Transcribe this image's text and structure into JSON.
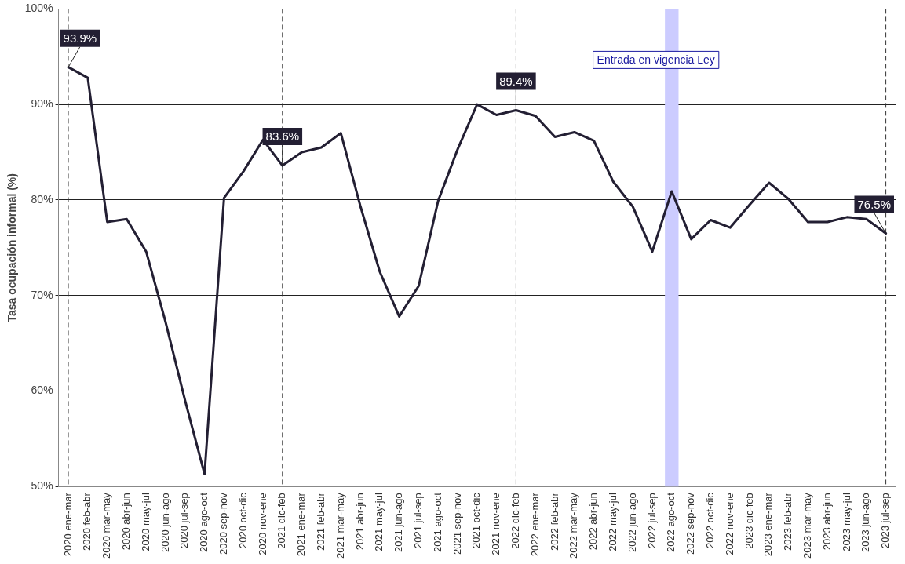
{
  "chart_data": {
    "type": "line",
    "ylabel": "Tasa ocupación informal (%)",
    "categories": [
      "2020 ene-mar",
      "2020 feb-abr",
      "2020 mar-may",
      "2020 abr-jun",
      "2020 may-jul",
      "2020 jun-ago",
      "2020 jul-sep",
      "2020 ago-oct",
      "2020 sep-nov",
      "2020 oct-dic",
      "2020 nov-ene",
      "2021 dic-feb",
      "2021 ene-mar",
      "2021 feb-abr",
      "2021 mar-may",
      "2021 abr-jun",
      "2021 may-jul",
      "2021 jun-ago",
      "2021 jul-sep",
      "2021 ago-oct",
      "2021 sep-nov",
      "2021 oct-dic",
      "2021 nov-ene",
      "2022 dic-feb",
      "2022 ene-mar",
      "2022 feb-abr",
      "2022 mar-may",
      "2022 abr-jun",
      "2022 may-jul",
      "2022 jun-ago",
      "2022 jul-sep",
      "2022 ago-oct",
      "2022 sep-nov",
      "2022 oct-dic",
      "2022 nov-ene",
      "2023 dic-feb",
      "2023 ene-mar",
      "2023 feb-abr",
      "2023 mar-may",
      "2023 abr-jun",
      "2023 may-jul",
      "2023 jun-ago",
      "2023 jul-sep"
    ],
    "series": [
      {
        "color": "#231f33",
        "values": [
          93.9,
          92.8,
          77.7,
          78.0,
          74.6,
          67.2,
          59.0,
          51.3,
          80.2,
          83.0,
          86.3,
          83.6,
          85.0,
          85.5,
          87.0,
          79.4,
          72.5,
          67.8,
          71.0,
          79.9,
          85.3,
          90.0,
          88.9,
          89.4,
          88.8,
          86.6,
          87.1,
          86.2,
          81.9,
          79.3,
          74.6,
          80.9,
          75.9,
          77.9,
          77.1,
          79.5,
          81.8,
          80.1,
          77.7,
          77.7,
          78.2,
          78.0,
          76.5
        ],
        "value_labels": [
          "93.9%",
          null,
          null,
          null,
          null,
          null,
          null,
          null,
          null,
          null,
          null,
          "83.6%",
          null,
          null,
          null,
          null,
          null,
          null,
          null,
          null,
          null,
          null,
          null,
          "89.4%",
          null,
          null,
          null,
          null,
          null,
          null,
          null,
          null,
          null,
          null,
          null,
          null,
          null,
          null,
          null,
          null,
          null,
          null,
          "76.5%"
        ]
      }
    ],
    "ylim": [
      50,
      100
    ],
    "yticks": [
      {
        "value": 50,
        "label": "50%"
      },
      {
        "value": 60,
        "label": "60%"
      },
      {
        "value": 70,
        "label": "70%"
      },
      {
        "value": 80,
        "label": "80%"
      },
      {
        "value": 90,
        "label": "90%"
      },
      {
        "value": 100,
        "label": "100%"
      }
    ],
    "grid": "y",
    "legend": false,
    "marker": "none",
    "line_style": "solid",
    "ref_lines": [
      {
        "axis": "x",
        "value": "2020 ene-mar",
        "color": "#333333",
        "line_style": "dashed"
      },
      {
        "axis": "x",
        "value": "2021 dic-feb",
        "color": "#333333",
        "line_style": "dashed"
      },
      {
        "axis": "x",
        "value": "2022 dic-feb",
        "color": "#333333",
        "line_style": "dashed"
      },
      {
        "axis": "x",
        "value": "2023 jul-sep",
        "color": "#333333",
        "line_style": "dashed"
      }
    ],
    "bands": [
      {
        "axis": "x",
        "from": "2022 ago-oct",
        "to": "2022 ago-oct",
        "label": "Entrada en vigencia Ley",
        "color": "#ccccff"
      }
    ]
  }
}
